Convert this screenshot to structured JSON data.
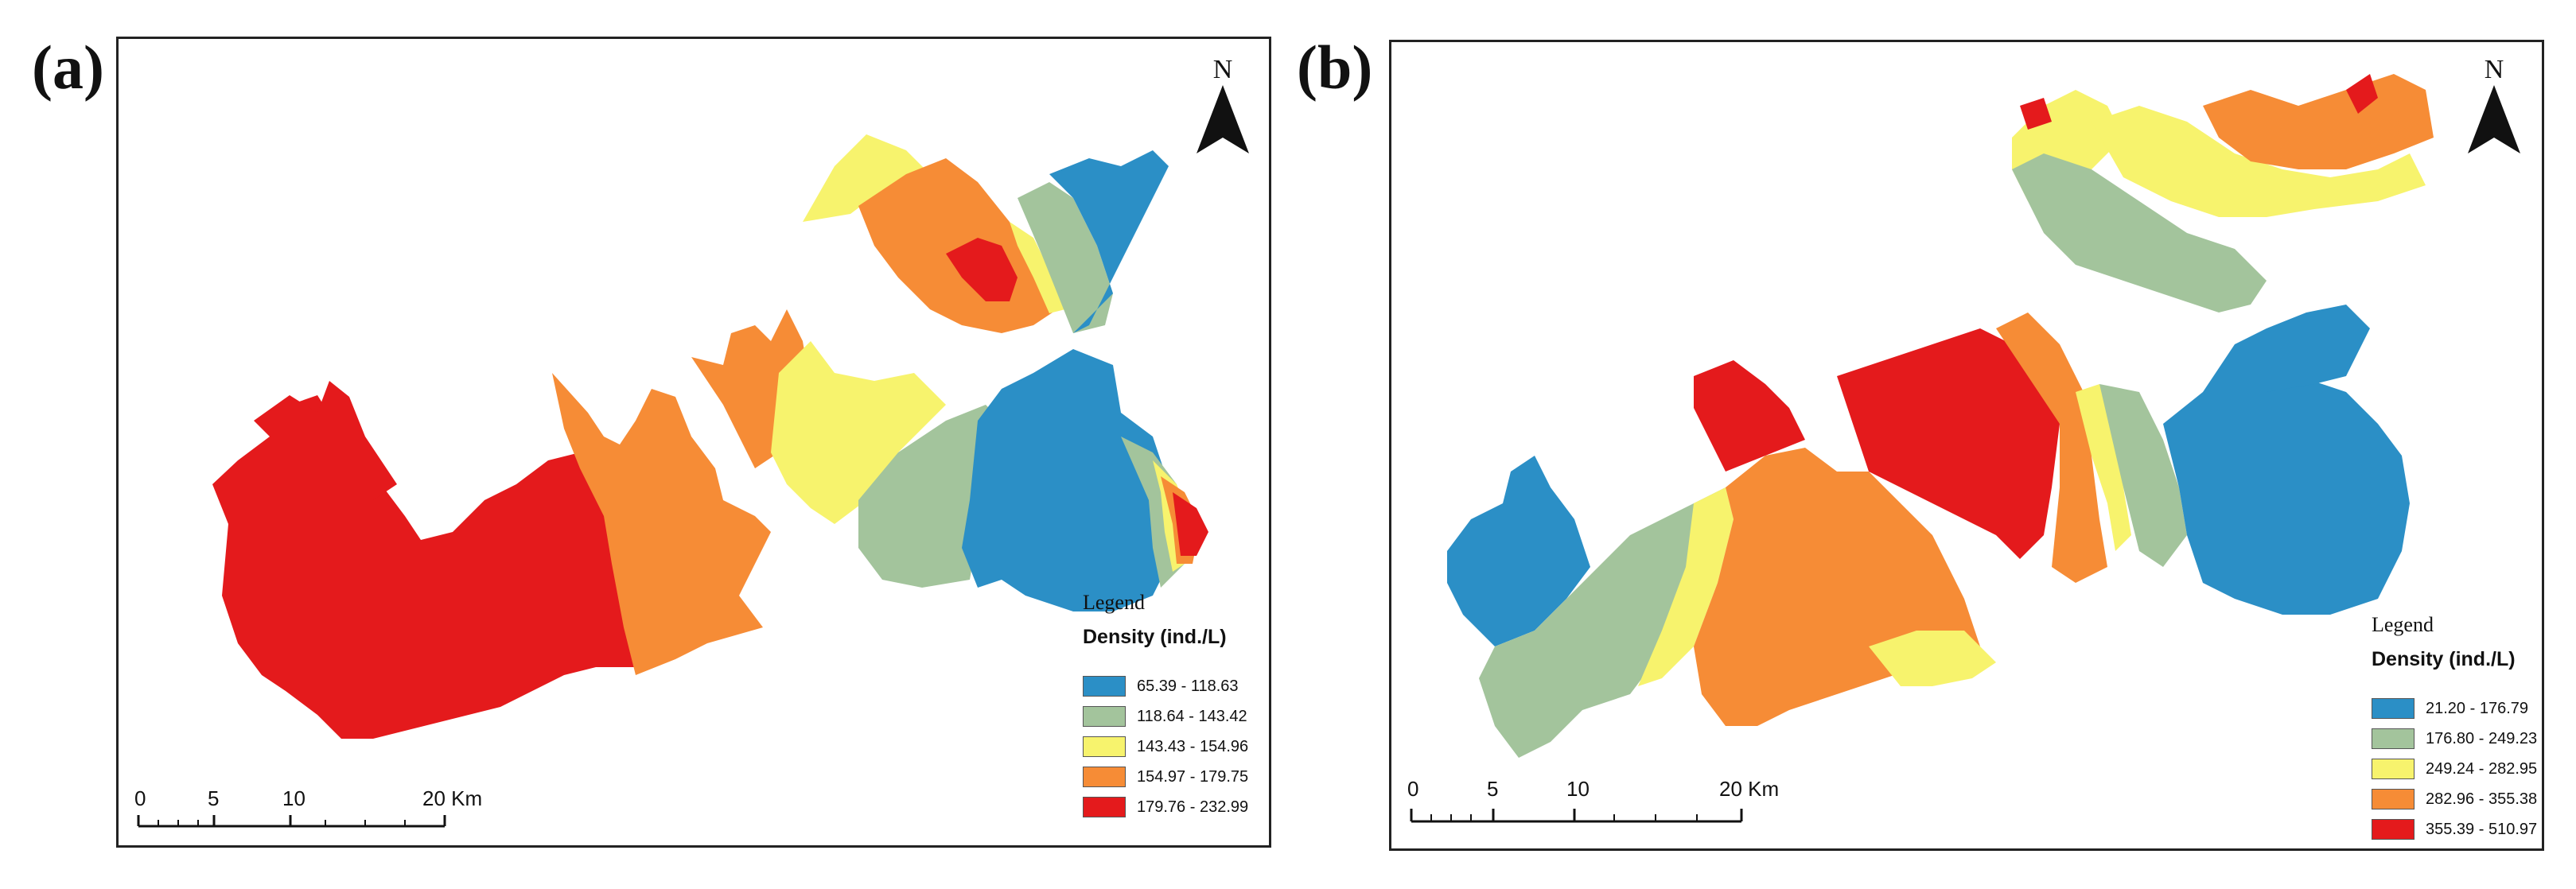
{
  "colors": {
    "c1": "#2b8fc6",
    "c2": "#a3c49c",
    "c3": "#f7f36d",
    "c4": "#f68c36",
    "c5": "#e41a1c"
  },
  "panels": [
    {
      "label": "(a)",
      "north": "N",
      "legend": {
        "title": "Legend",
        "subtitle": "Density (ind./L)",
        "classes": [
          {
            "range": "65.39 - 118.63",
            "color": "#2b8fc6"
          },
          {
            "range": "118.64 - 143.42",
            "color": "#a3c49c"
          },
          {
            "range": "143.43 - 154.96",
            "color": "#f7f36d"
          },
          {
            "range": "154.97 - 179.75",
            "color": "#f68c36"
          },
          {
            "range": "179.76 - 232.99",
            "color": "#e41a1c"
          }
        ]
      },
      "scale": {
        "t0": "0",
        "t5": "5",
        "t10": "10",
        "t20": "20 Km"
      }
    },
    {
      "label": "(b)",
      "north": "N",
      "legend": {
        "title": "Legend",
        "subtitle": "Density (ind./L)",
        "classes": [
          {
            "range": "21.20 - 176.79",
            "color": "#2b8fc6"
          },
          {
            "range": "176.80 - 249.23",
            "color": "#a3c49c"
          },
          {
            "range": "249.24 - 282.95",
            "color": "#f7f36d"
          },
          {
            "range": "282.96 - 355.38",
            "color": "#f68c36"
          },
          {
            "range": "355.39 - 510.97",
            "color": "#e41a1c"
          }
        ]
      },
      "scale": {
        "t0": "0",
        "t5": "5",
        "t10": "10",
        "t20": "20 Km"
      }
    }
  ]
}
